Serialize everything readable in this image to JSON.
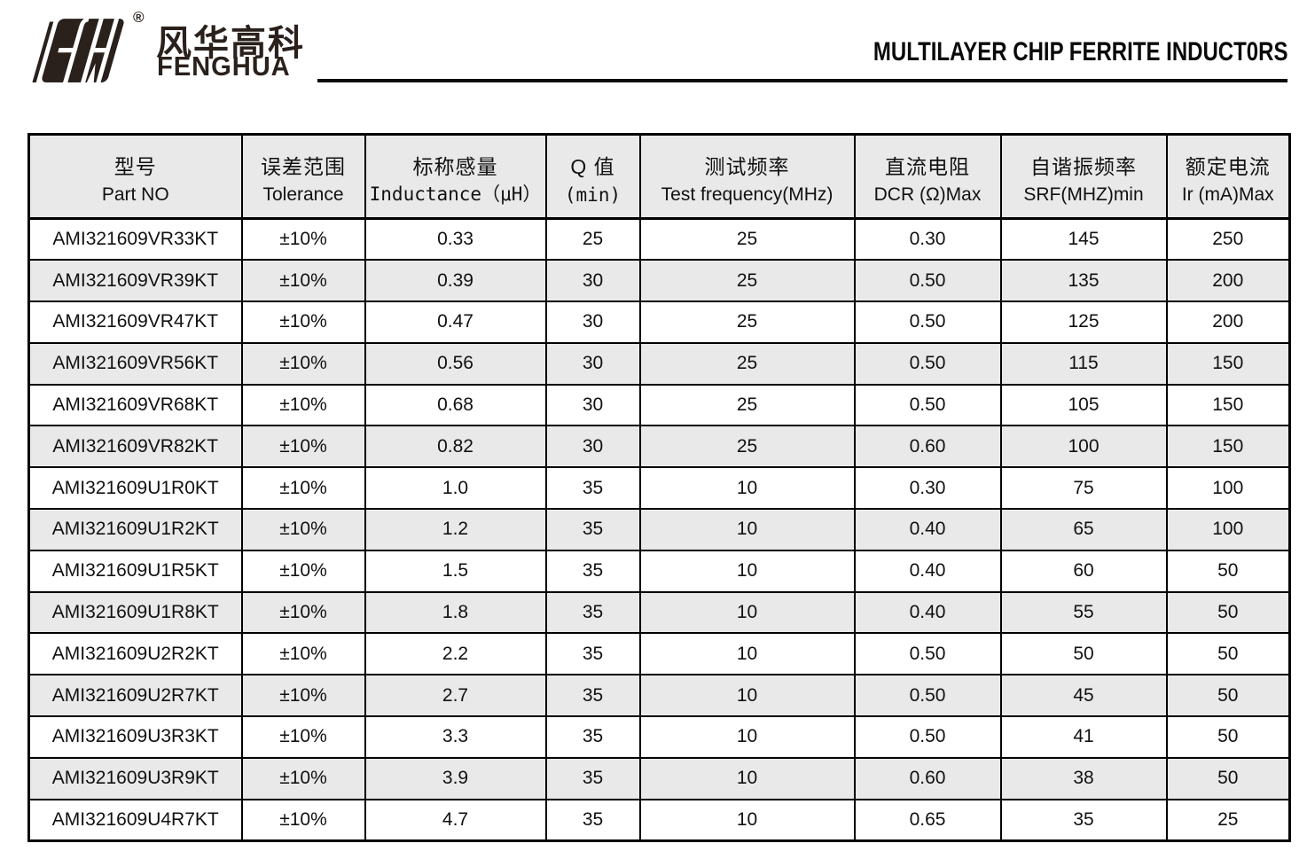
{
  "header": {
    "logo": {
      "brand_cn": "风华高科",
      "brand_en": "FENGHUA",
      "registered_mark": "®"
    },
    "title": "MULTILAYER CHIP FERRITE INDUCT0RS"
  },
  "table": {
    "columns": [
      {
        "cn": "型号",
        "en": "Part NO",
        "mono": false
      },
      {
        "cn": "误差范围",
        "en": "Tolerance",
        "mono": false
      },
      {
        "cn": "标称感量",
        "en": "Inductance（μH）",
        "mono": true
      },
      {
        "cn": "Q 值",
        "en": "(min)",
        "mono": true
      },
      {
        "cn": "测试频率",
        "en": "Test frequency(MHz)",
        "mono": false
      },
      {
        "cn": "直流电阻",
        "en": "DCR (Ω)Max",
        "mono": false
      },
      {
        "cn": "自谐振频率",
        "en": "SRF(MHZ)min",
        "mono": false
      },
      {
        "cn": "额定电流",
        "en": "Ir (mA)Max",
        "mono": false
      }
    ],
    "rows": [
      [
        "AMI321609VR33KT",
        "±10%",
        "0.33",
        "25",
        "25",
        "0.30",
        "145",
        "250"
      ],
      [
        "AMI321609VR39KT",
        "±10%",
        "0.39",
        "30",
        "25",
        "0.50",
        "135",
        "200"
      ],
      [
        "AMI321609VR47KT",
        "±10%",
        "0.47",
        "30",
        "25",
        "0.50",
        "125",
        "200"
      ],
      [
        "AMI321609VR56KT",
        "±10%",
        "0.56",
        "30",
        "25",
        "0.50",
        "115",
        "150"
      ],
      [
        "AMI321609VR68KT",
        "±10%",
        "0.68",
        "30",
        "25",
        "0.50",
        "105",
        "150"
      ],
      [
        "AMI321609VR82KT",
        "±10%",
        "0.82",
        "30",
        "25",
        "0.60",
        "100",
        "150"
      ],
      [
        "AMI321609U1R0KT",
        "±10%",
        "1.0",
        "35",
        "10",
        "0.30",
        "75",
        "100"
      ],
      [
        "AMI321609U1R2KT",
        "±10%",
        "1.2",
        "35",
        "10",
        "0.40",
        "65",
        "100"
      ],
      [
        "AMI321609U1R5KT",
        "±10%",
        "1.5",
        "35",
        "10",
        "0.40",
        "60",
        "50"
      ],
      [
        "AMI321609U1R8KT",
        "±10%",
        "1.8",
        "35",
        "10",
        "0.40",
        "55",
        "50"
      ],
      [
        "AMI321609U2R2KT",
        "±10%",
        "2.2",
        "35",
        "10",
        "0.50",
        "50",
        "50"
      ],
      [
        "AMI321609U2R7KT",
        "±10%",
        "2.7",
        "35",
        "10",
        "0.50",
        "45",
        "50"
      ],
      [
        "AMI321609U3R3KT",
        "±10%",
        "3.3",
        "35",
        "10",
        "0.50",
        "41",
        "50"
      ],
      [
        "AMI321609U3R9KT",
        "±10%",
        "3.9",
        "35",
        "10",
        "0.60",
        "38",
        "50"
      ],
      [
        "AMI321609U4R7KT",
        "±10%",
        "4.7",
        "35",
        "10",
        "0.65",
        "35",
        "25"
      ]
    ]
  },
  "colors": {
    "row_alt": "#e9e9e9",
    "border": "#000000",
    "ink": "#2a211c"
  }
}
